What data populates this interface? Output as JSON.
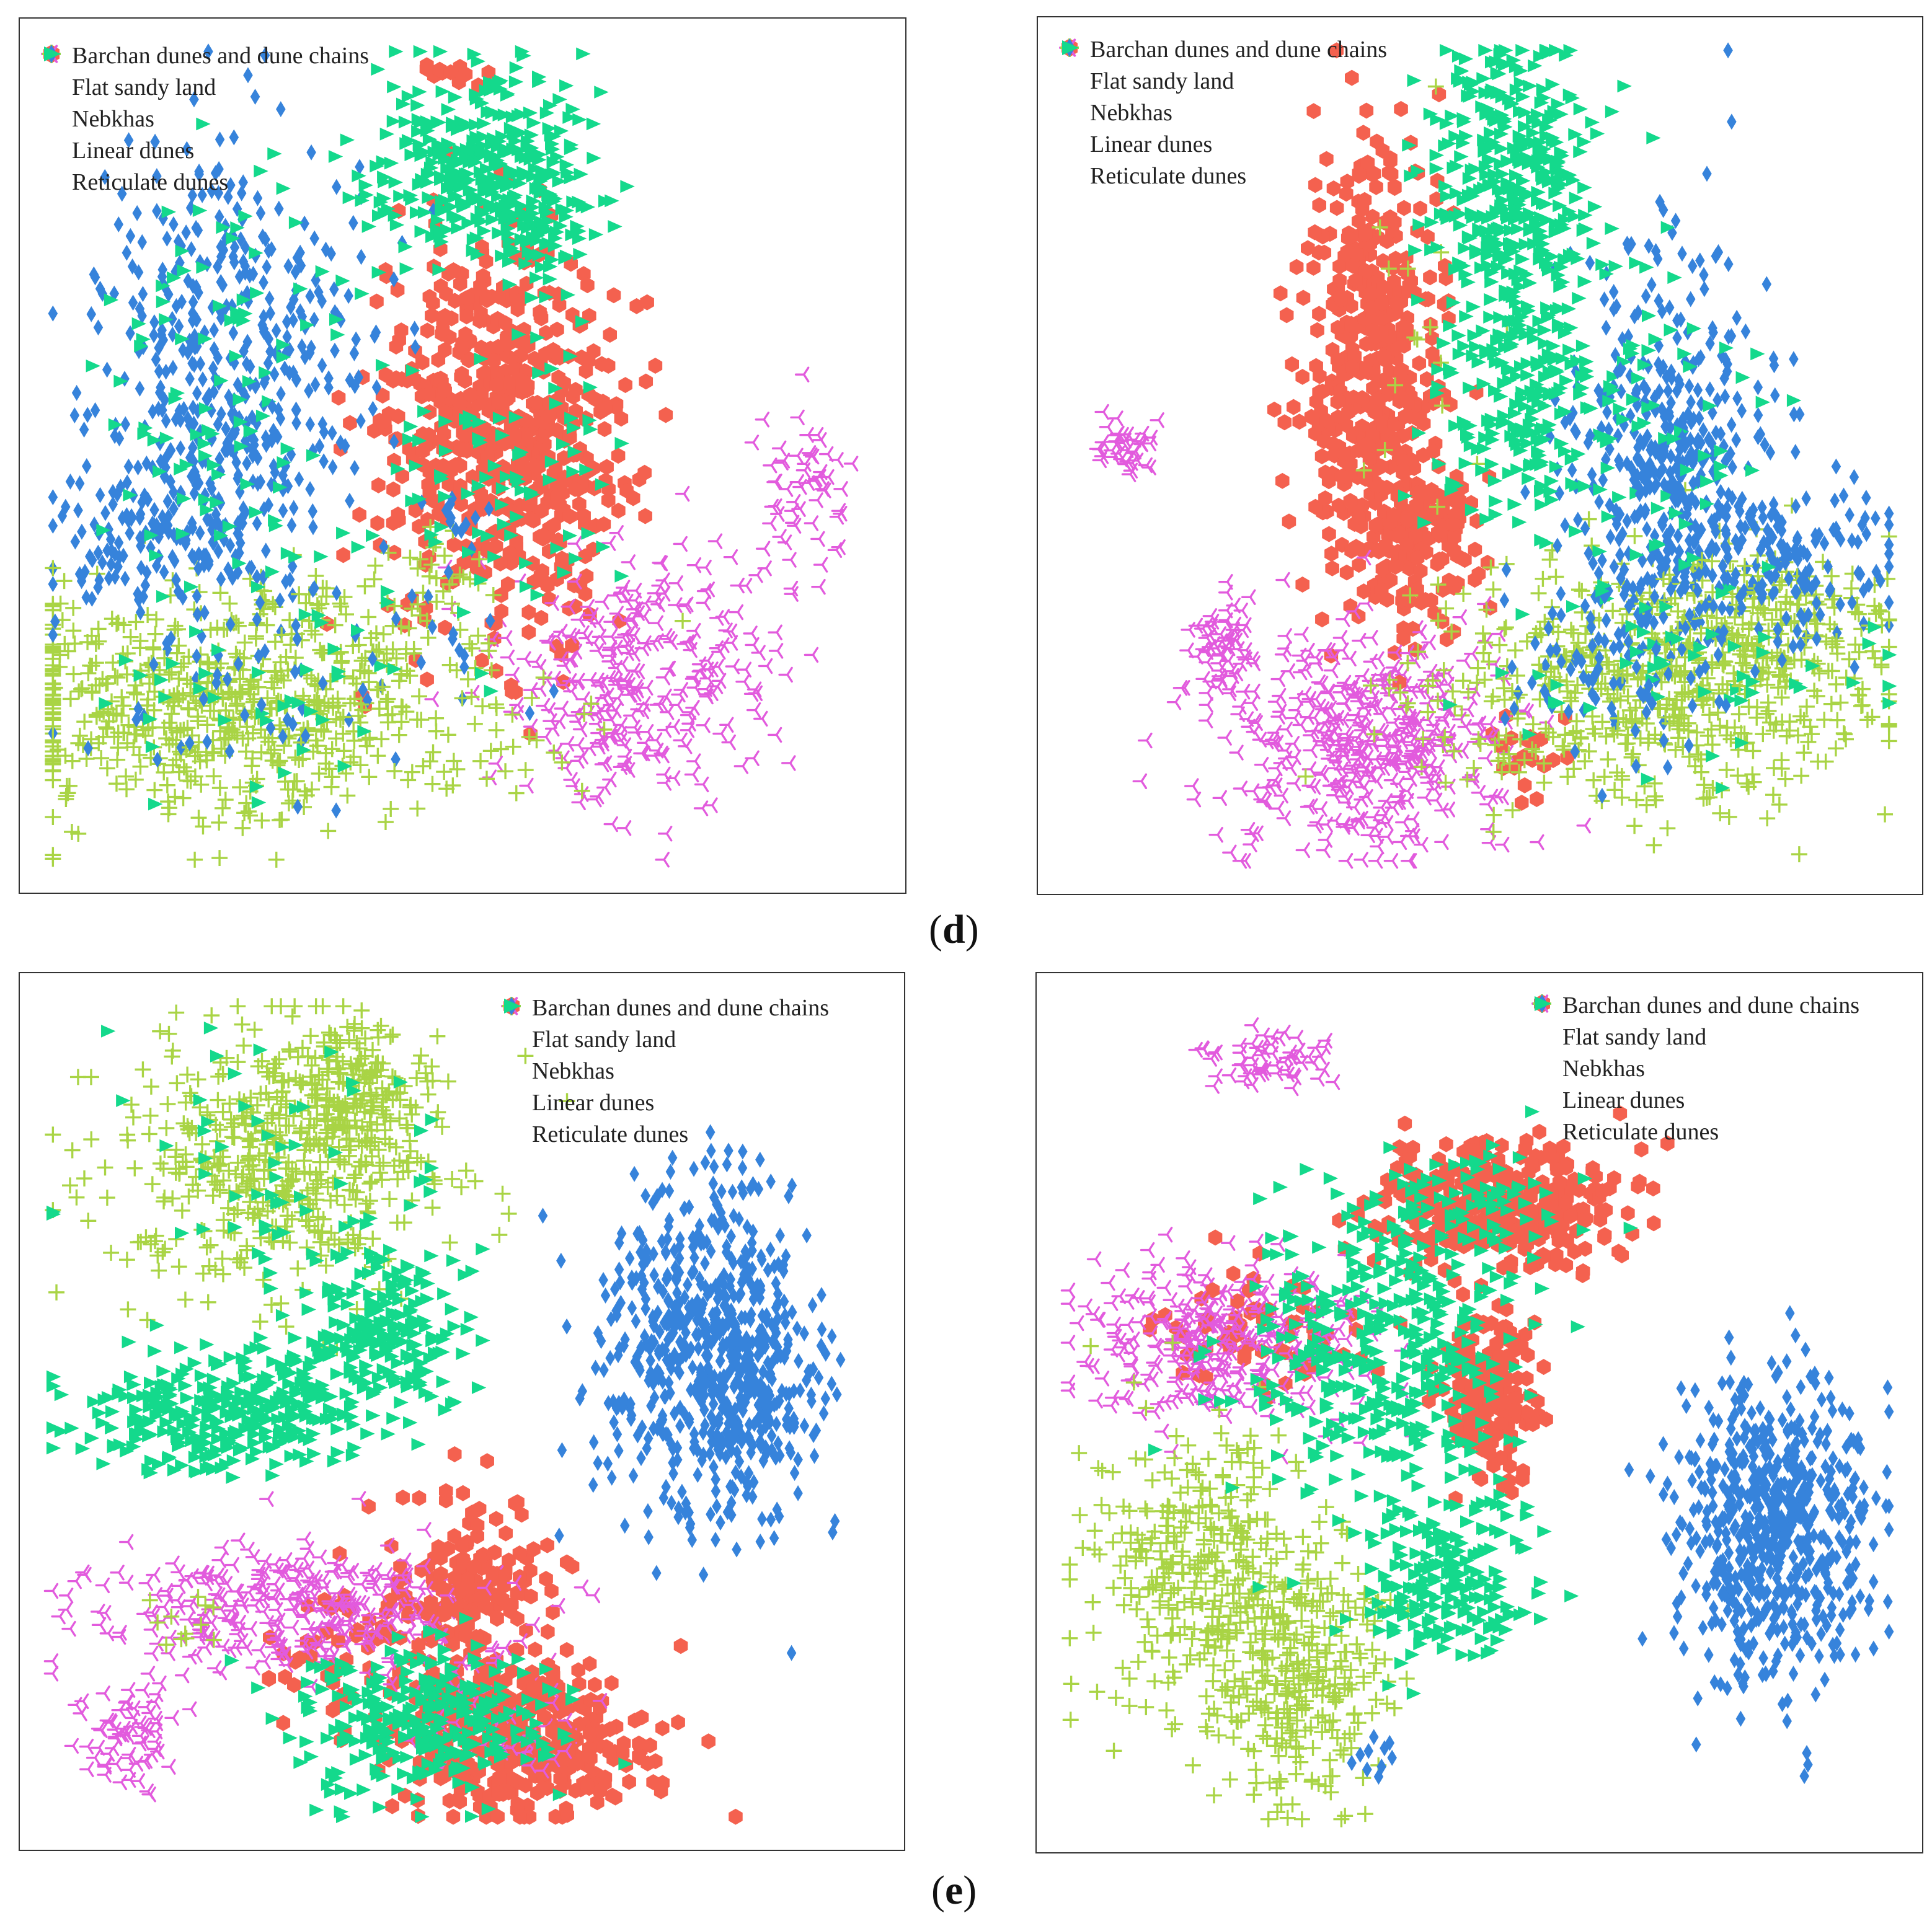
{
  "figure_labels": {
    "d": {
      "open": "(",
      "letter": "d",
      "close": ")"
    },
    "e": {
      "open": "(",
      "letter": "e",
      "close": ")"
    }
  },
  "categories": [
    {
      "key": "barchan",
      "label": "Barchan dunes and dune chains",
      "color": "#F4614F",
      "marker": "hexagon"
    },
    {
      "key": "flat",
      "label": "Flat sandy land",
      "color": "#E25BDD",
      "marker": "tri-left"
    },
    {
      "key": "nebkhas",
      "label": "Nebkhas",
      "color": "#A9D445",
      "marker": "plus"
    },
    {
      "key": "linear",
      "label": "Linear dunes",
      "color": "#3683DB",
      "marker": "diamond"
    },
    {
      "key": "reticulate",
      "label": "Reticulate dunes",
      "color": "#14D98C",
      "marker": "triangle-right"
    }
  ],
  "chart_data": [
    {
      "type": "scatter",
      "panel": "d-left",
      "title": "",
      "xlabel": "",
      "ylabel": "",
      "xlim": [
        0,
        100
      ],
      "ylim": [
        0,
        100
      ],
      "grid": false,
      "axes_ticks": false,
      "legend_position": "top-left",
      "series": [
        {
          "name": "Barchan dunes and dune chains",
          "clusters": [
            {
              "cx": 52,
              "cy": 54,
              "sx": 7,
              "sy": 12,
              "n": 380
            },
            {
              "cx": 59,
              "cy": 52,
              "sx": 6,
              "sy": 10,
              "n": 200
            },
            {
              "cx": 49,
              "cy": 96,
              "sx": 3,
              "sy": 1,
              "n": 14
            },
            {
              "cx": 63,
              "cy": 36,
              "sx": 3,
              "sy": 3,
              "n": 14
            }
          ]
        },
        {
          "name": "Flat sandy land",
          "clusters": [
            {
              "cx": 72,
              "cy": 24,
              "sx": 8,
              "sy": 8,
              "n": 280
            },
            {
              "cx": 91,
              "cy": 45,
              "sx": 3,
              "sy": 6,
              "n": 60
            },
            {
              "cx": 68,
              "cy": 17,
              "sx": 3,
              "sy": 3,
              "n": 30
            }
          ]
        },
        {
          "name": "Nebkhas",
          "clusters": [
            {
              "cx": 23,
              "cy": 20,
              "sx": 17,
              "sy": 7,
              "n": 700
            },
            {
              "cx": 48,
              "cy": 36,
              "sx": 4,
              "sy": 4,
              "n": 22
            },
            {
              "cx": 34,
              "cy": 33,
              "sx": 2,
              "sy": 2,
              "n": 8
            }
          ]
        },
        {
          "name": "Linear dunes",
          "clusters": [
            {
              "cx": 22,
              "cy": 60,
              "sx": 8,
              "sy": 14,
              "n": 460
            },
            {
              "cx": 13,
              "cy": 40,
              "sx": 6,
              "sy": 4,
              "n": 120
            },
            {
              "cx": 25,
              "cy": 22,
              "sx": 15,
              "sy": 6,
              "n": 60
            },
            {
              "cx": 50,
              "cy": 42,
              "sx": 3,
              "sy": 3,
              "n": 12
            }
          ]
        },
        {
          "name": "Reticulate dunes",
          "clusters": [
            {
              "cx": 52,
              "cy": 85,
              "sx": 6,
              "sy": 6,
              "n": 320
            },
            {
              "cx": 60,
              "cy": 79,
              "sx": 3,
              "sy": 5,
              "n": 90
            },
            {
              "cx": 22,
              "cy": 58,
              "sx": 8,
              "sy": 14,
              "n": 110
            },
            {
              "cx": 55,
              "cy": 48,
              "sx": 7,
              "sy": 8,
              "n": 80
            },
            {
              "cx": 25,
              "cy": 22,
              "sx": 15,
              "sy": 5,
              "n": 40
            }
          ]
        }
      ]
    },
    {
      "type": "scatter",
      "panel": "d-right",
      "title": "",
      "xlabel": "",
      "ylabel": "",
      "xlim": [
        0,
        100
      ],
      "ylim": [
        0,
        100
      ],
      "grid": false,
      "axes_ticks": false,
      "legend_position": "top-left",
      "series": [
        {
          "name": "Barchan dunes and dune chains",
          "clusters": [
            {
              "cx": 37,
              "cy": 62,
              "sx": 4,
              "sy": 13,
              "n": 420
            },
            {
              "cx": 43,
              "cy": 40,
              "sx": 4,
              "sy": 6,
              "n": 150
            },
            {
              "cx": 55,
              "cy": 13,
              "sx": 2,
              "sy": 3,
              "n": 20
            }
          ]
        },
        {
          "name": "Flat sandy land",
          "clusters": [
            {
              "cx": 37,
              "cy": 15,
              "sx": 8,
              "sy": 7,
              "n": 440
            },
            {
              "cx": 19,
              "cy": 26,
              "sx": 2,
              "sy": 4,
              "n": 70
            },
            {
              "cx": 7,
              "cy": 51,
              "sx": 2,
              "sy": 2,
              "n": 40
            }
          ]
        },
        {
          "name": "Nebkhas",
          "clusters": [
            {
              "cx": 71,
              "cy": 22,
              "sx": 14,
              "sy": 7,
              "n": 560
            },
            {
              "cx": 84,
              "cy": 30,
              "sx": 7,
              "sy": 5,
              "n": 140
            },
            {
              "cx": 42,
              "cy": 62,
              "sx": 5,
              "sy": 12,
              "n": 16
            }
          ]
        },
        {
          "name": "Linear dunes",
          "clusters": [
            {
              "cx": 72,
              "cy": 50,
              "sx": 6,
              "sy": 13,
              "n": 440
            },
            {
              "cx": 86,
              "cy": 37,
              "sx": 7,
              "sy": 5,
              "n": 160
            },
            {
              "cx": 62,
              "cy": 25,
              "sx": 6,
              "sy": 5,
              "n": 60
            }
          ]
        },
        {
          "name": "Reticulate dunes",
          "clusters": [
            {
              "cx": 54,
              "cy": 82,
              "sx": 5,
              "sy": 10,
              "n": 380
            },
            {
              "cx": 55,
              "cy": 57,
              "sx": 5,
              "sy": 8,
              "n": 200
            },
            {
              "cx": 72,
              "cy": 48,
              "sx": 7,
              "sy": 13,
              "n": 70
            },
            {
              "cx": 73,
              "cy": 22,
              "sx": 14,
              "sy": 6,
              "n": 40
            }
          ]
        }
      ]
    },
    {
      "type": "scatter",
      "panel": "e-left",
      "title": "",
      "xlabel": "",
      "ylabel": "",
      "xlim": [
        0,
        100
      ],
      "ylim": [
        0,
        100
      ],
      "grid": false,
      "axes_ticks": false,
      "legend_position": "top-right",
      "series": [
        {
          "name": "Barchan dunes and dune chains",
          "clusters": [
            {
              "cx": 57,
              "cy": 10,
              "sx": 8,
              "sy": 5,
              "n": 380
            },
            {
              "cx": 50,
              "cy": 28,
              "sx": 5,
              "sy": 6,
              "n": 180
            },
            {
              "cx": 35,
              "cy": 20,
              "sx": 4,
              "sy": 4,
              "n": 40
            }
          ]
        },
        {
          "name": "Flat sandy land",
          "clusters": [
            {
              "cx": 30,
              "cy": 26,
              "sx": 12,
              "sy": 4,
              "n": 330
            },
            {
              "cx": 10,
              "cy": 11,
              "sx": 3,
              "sy": 3,
              "n": 70
            },
            {
              "cx": 55,
              "cy": 14,
              "sx": 6,
              "sy": 5,
              "n": 60
            }
          ]
        },
        {
          "name": "Nebkhas",
          "clusters": [
            {
              "cx": 27,
              "cy": 80,
              "sx": 10,
              "sy": 8,
              "n": 460
            },
            {
              "cx": 37,
              "cy": 88,
              "sx": 5,
              "sy": 5,
              "n": 180
            },
            {
              "cx": 18,
              "cy": 24,
              "sx": 3,
              "sy": 3,
              "n": 12
            }
          ]
        },
        {
          "name": "Linear dunes",
          "clusters": [
            {
              "cx": 79,
              "cy": 58,
              "sx": 6,
              "sy": 10,
              "n": 600
            },
            {
              "cx": 86,
              "cy": 50,
              "sx": 4,
              "sy": 5,
              "n": 90
            }
          ]
        },
        {
          "name": "Reticulate dunes",
          "clusters": [
            {
              "cx": 23,
              "cy": 50,
              "sx": 10,
              "sy": 4,
              "n": 320
            },
            {
              "cx": 40,
              "cy": 60,
              "sx": 5,
              "sy": 5,
              "n": 200
            },
            {
              "cx": 45,
              "cy": 13,
              "sx": 8,
              "sy": 5,
              "n": 280
            },
            {
              "cx": 27,
              "cy": 80,
              "sx": 10,
              "sy": 8,
              "n": 60
            }
          ]
        }
      ]
    },
    {
      "type": "scatter",
      "panel": "e-right",
      "title": "",
      "xlabel": "",
      "ylabel": "",
      "xlim": [
        0,
        100
      ],
      "ylim": [
        0,
        100
      ],
      "grid": false,
      "axes_ticks": false,
      "legend_position": "top-right",
      "series": [
        {
          "name": "Barchan dunes and dune chains",
          "clusters": [
            {
              "cx": 52,
              "cy": 75,
              "sx": 7,
              "sy": 4,
              "n": 330
            },
            {
              "cx": 51,
              "cy": 53,
              "sx": 3,
              "sy": 5,
              "n": 170
            },
            {
              "cx": 24,
              "cy": 60,
              "sx": 6,
              "sy": 4,
              "n": 70
            }
          ]
        },
        {
          "name": "Flat sandy land",
          "clusters": [
            {
              "cx": 20,
              "cy": 59,
              "sx": 9,
              "sy": 5,
              "n": 330
            },
            {
              "cx": 25,
              "cy": 93,
              "sx": 4,
              "sy": 2,
              "n": 60
            }
          ]
        },
        {
          "name": "Nebkhas",
          "clusters": [
            {
              "cx": 16,
              "cy": 31,
              "sx": 6,
              "sy": 9,
              "n": 320
            },
            {
              "cx": 29,
              "cy": 18,
              "sx": 5,
              "sy": 8,
              "n": 280
            }
          ]
        },
        {
          "name": "Linear dunes",
          "clusters": [
            {
              "cx": 85,
              "cy": 36,
              "sx": 6,
              "sy": 9,
              "n": 620
            },
            {
              "cx": 37,
              "cy": 9,
              "sx": 1,
              "sy": 2,
              "n": 10
            }
          ]
        },
        {
          "name": "Reticulate dunes",
          "clusters": [
            {
              "cx": 38,
              "cy": 57,
              "sx": 8,
              "sy": 9,
              "n": 360
            },
            {
              "cx": 46,
              "cy": 30,
              "sx": 5,
              "sy": 5,
              "n": 200
            },
            {
              "cx": 49,
              "cy": 75,
              "sx": 8,
              "sy": 4,
              "n": 90
            }
          ]
        }
      ]
    }
  ]
}
